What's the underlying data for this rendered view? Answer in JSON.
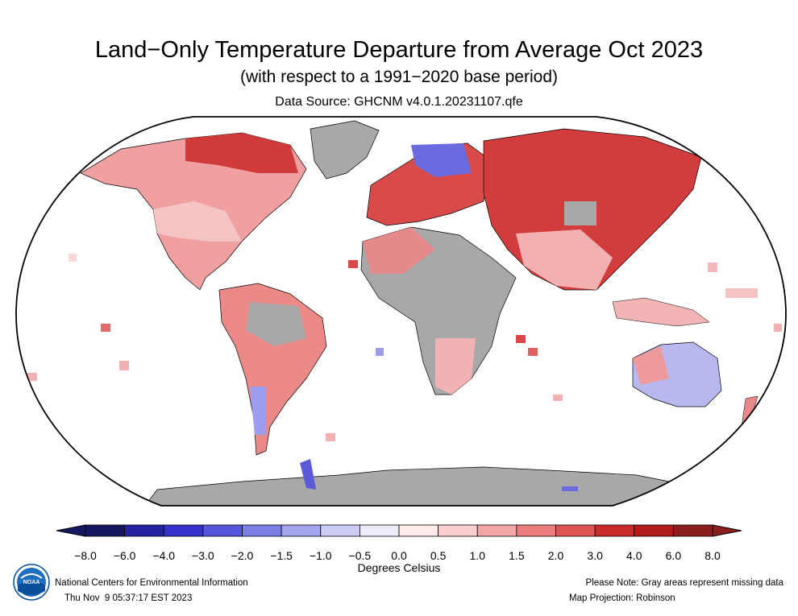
{
  "header": {
    "title": "Land−Only Temperature Departure from Average Oct 2023",
    "subtitle": "(with respect to a 1991−2020 base period)",
    "source": "Data Source: GHCNM v4.0.1.20231107.qfe"
  },
  "legend": {
    "units": "Degrees Celsius",
    "ticks": [
      "−8.0",
      "−6.0",
      "−4.0",
      "−3.0",
      "−2.0",
      "−1.5",
      "−1.0",
      "−0.5",
      "0.0",
      "0.5",
      "1.0",
      "1.5",
      "2.0",
      "3.0",
      "4.0",
      "6.0",
      "8.0"
    ],
    "colors": [
      "#151860",
      "#2422a0",
      "#3333cc",
      "#5656dd",
      "#7d7de6",
      "#a4a4ef",
      "#cbcbf6",
      "#ececfb",
      "#fdeaea",
      "#fbcfcf",
      "#f4a5a5",
      "#ec7c7c",
      "#e05454",
      "#c92b2b",
      "#b01c1c",
      "#8a1e1e"
    ],
    "missing_color": "#a8a8a8"
  },
  "footer": {
    "org": "National Centers for Environmental Information",
    "timestamp": "Thu Nov  9 05:37:17 EST 2023",
    "note": "Please Note: Gray areas represent missing data",
    "projection": "Map Projection: Robinson"
  },
  "logo": {
    "text": "NOAA"
  }
}
